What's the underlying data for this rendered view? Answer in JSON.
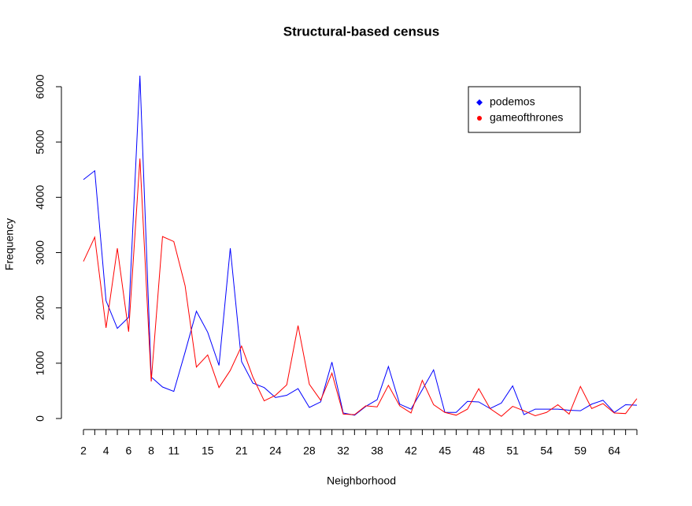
{
  "chart_data": {
    "type": "line",
    "title": "Structural-based census",
    "xlabel": "Neighborhood",
    "ylabel": "Frequency",
    "categories": [
      "2",
      null,
      "4",
      null,
      "6",
      null,
      "8",
      null,
      "11",
      null,
      null,
      "15",
      null,
      null,
      "21",
      null,
      null,
      "24",
      null,
      null,
      "28",
      null,
      null,
      "32",
      null,
      null,
      "38",
      null,
      null,
      "42",
      null,
      null,
      "45",
      null,
      null,
      "48",
      null,
      null,
      "51",
      null,
      null,
      "54",
      null,
      null,
      "59",
      null,
      null,
      "64",
      null,
      null
    ],
    "series": [
      {
        "name": "podemos",
        "color": "#0000ff",
        "values": [
          4320,
          4480,
          2130,
          1630,
          1830,
          6200,
          750,
          570,
          490,
          1200,
          1940,
          1560,
          960,
          3080,
          1030,
          640,
          560,
          380,
          420,
          540,
          200,
          300,
          1020,
          100,
          60,
          220,
          340,
          940,
          260,
          170,
          520,
          880,
          110,
          110,
          310,
          300,
          180,
          280,
          590,
          70,
          170,
          170,
          170,
          150,
          140,
          260,
          330,
          110,
          250,
          240
        ]
      },
      {
        "name": "gameofthrones",
        "color": "#ff0000",
        "values": [
          2840,
          3280,
          1640,
          3080,
          1570,
          4700,
          670,
          3290,
          3200,
          2400,
          930,
          1150,
          560,
          870,
          1310,
          750,
          320,
          420,
          610,
          1680,
          620,
          330,
          820,
          80,
          70,
          230,
          210,
          600,
          230,
          100,
          690,
          250,
          110,
          60,
          170,
          540,
          180,
          40,
          220,
          140,
          50,
          110,
          250,
          80,
          580,
          180,
          270,
          100,
          90,
          360
        ]
      }
    ],
    "ylim": [
      0,
      6000
    ],
    "yticks": [
      0,
      1000,
      2000,
      3000,
      4000,
      5000,
      6000
    ],
    "grid": false,
    "legend": "top-right"
  }
}
